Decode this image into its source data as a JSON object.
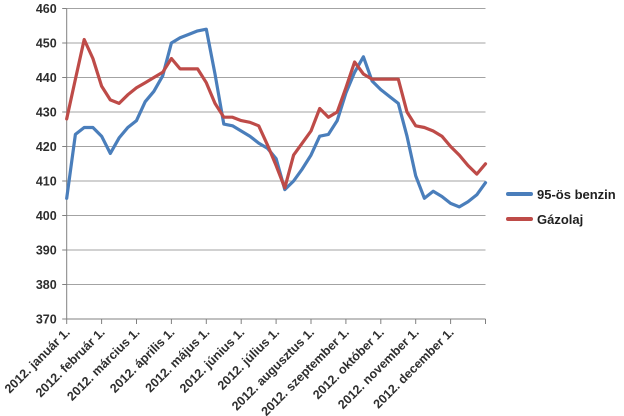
{
  "chart_data": {
    "type": "line",
    "title": "",
    "xlabel": "",
    "ylabel": "",
    "n_points": 49,
    "x_tick_labels": [
      "2012. január 1.",
      "2012. február 1.",
      "2012. március 1.",
      "2012. április 1.",
      "2012. május 1.",
      "2012. június 1.",
      "2012. július 1.",
      "2012. augusztus 1.",
      "2012. szeptember 1.",
      "2012. október 1.",
      "2012. november 1.",
      "2012. december 1."
    ],
    "points_per_month": 4,
    "y_axis": {
      "min": 370,
      "max": 460,
      "step": 10
    },
    "grid": true,
    "legend_position": "right",
    "series": [
      {
        "name": "95-ös benzin",
        "color": "#4A7EBB",
        "values": [
          405,
          423.5,
          425.5,
          425.5,
          423,
          418,
          422.5,
          425.5,
          427.5,
          433,
          436,
          440.5,
          450,
          451.5,
          452.5,
          453.5,
          454,
          441,
          426.5,
          426,
          424.5,
          423,
          421,
          419.5,
          416.5,
          407.5,
          410,
          413.5,
          417.5,
          423,
          423.5,
          427.5,
          435.5,
          441.5,
          446,
          439,
          436.5,
          434.5,
          432.5,
          423,
          411.5,
          405,
          407,
          405.5,
          403.5,
          402.5,
          404,
          406,
          409.5
        ]
      },
      {
        "name": "Gázolaj",
        "color": "#BE4B48",
        "values": [
          428,
          439.5,
          451,
          445.5,
          437.5,
          433.5,
          432.5,
          435,
          437,
          438.5,
          440,
          441.5,
          445.5,
          442.5,
          442.5,
          442.5,
          438.5,
          432.5,
          428.5,
          428.5,
          427.5,
          427,
          426,
          420.5,
          414.5,
          408,
          417.5,
          421,
          424.5,
          431,
          428.5,
          430,
          437,
          444.5,
          441,
          439.5,
          439.5,
          439.5,
          439.5,
          430,
          426,
          425.5,
          424.5,
          423,
          420,
          417.5,
          414.5,
          412,
          415
        ]
      }
    ]
  },
  "colors": {
    "gridline": "#a3a3a3",
    "axis_line": "#808080",
    "tick_label": "#2e2e2e",
    "background": "#ffffff"
  }
}
